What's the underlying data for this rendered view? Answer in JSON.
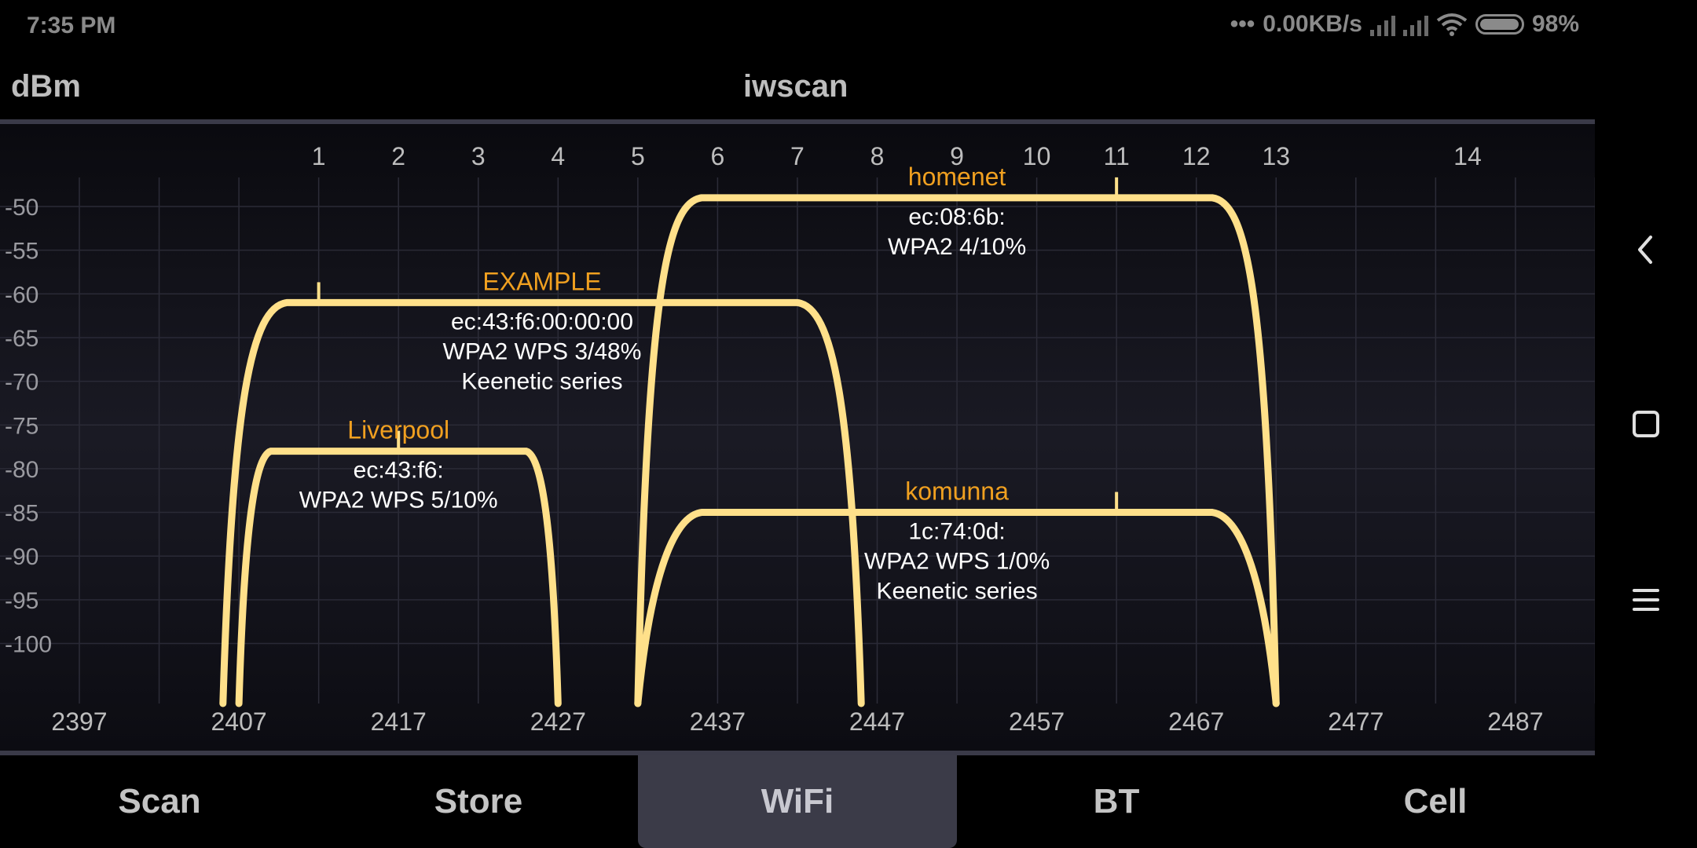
{
  "status_bar": {
    "time": "7:35 PM",
    "net_speed": "0.00KB/s",
    "battery": "98%",
    "battery_level": 0.98,
    "icons": [
      "dots-icon",
      "signal-icon",
      "signal-icon",
      "wifi-icon",
      "battery-icon"
    ]
  },
  "header": {
    "unit": "dBm",
    "title": "iwscan"
  },
  "chart_data": {
    "type": "area",
    "x_channel_ticks": [
      "1",
      "2",
      "3",
      "4",
      "5",
      "6",
      "7",
      "8",
      "9",
      "10",
      "11",
      "12",
      "13",
      "14"
    ],
    "channel_freqs": [
      2412,
      2417,
      2422,
      2427,
      2432,
      2437,
      2442,
      2447,
      2452,
      2457,
      2462,
      2467,
      2472,
      2484
    ],
    "x_freq_ticks": [
      "2397",
      "2407",
      "2417",
      "2427",
      "2437",
      "2447",
      "2457",
      "2467",
      "2477",
      "2487"
    ],
    "y_ticks": [
      "-50",
      "-55",
      "-60",
      "-65",
      "-70",
      "-75",
      "-80",
      "-85",
      "-90",
      "-95",
      "-100"
    ],
    "y_values": [
      -50,
      -55,
      -60,
      -65,
      -70,
      -75,
      -80,
      -85,
      -90,
      -95,
      -100
    ],
    "xlim": [
      2397,
      2493
    ],
    "ylim": [
      -106,
      -45
    ],
    "grid": true,
    "networks": [
      {
        "ssid": "EXAMPLE",
        "bssid": "ec:43:f6:00:00:00",
        "security": "WPA2 WPS 3/48%",
        "extra": "Keenetic series",
        "center_freq": 2426,
        "marker_freq": 2412,
        "width_mhz": 40,
        "level_dbm": -61
      },
      {
        "ssid": "Liverpool",
        "bssid": "ec:43:f6:",
        "security": "WPA2 WPS 5/10%",
        "extra": "",
        "center_freq": 2417,
        "marker_freq": 2417,
        "width_mhz": 20,
        "level_dbm": -78
      },
      {
        "ssid": "homenet",
        "bssid": "ec:08:6b:",
        "security": "WPA2  4/10%",
        "extra": "",
        "center_freq": 2452,
        "marker_freq": 2462,
        "width_mhz": 40,
        "level_dbm": -49
      },
      {
        "ssid": "komunna",
        "bssid": "1c:74:0d:",
        "security": "WPA2 WPS 1/0%",
        "extra": "Keenetic series",
        "center_freq": 2452,
        "marker_freq": 2462,
        "width_mhz": 40,
        "level_dbm": -85
      }
    ],
    "colors": {
      "curve": "#ffe08a",
      "ssid": "#f0a020",
      "info": "#ffffff",
      "axis": "#bdbdbd"
    }
  },
  "tabs": [
    {
      "label": "Scan",
      "active": false
    },
    {
      "label": "Store",
      "active": false
    },
    {
      "label": "WiFi",
      "active": true
    },
    {
      "label": "BT",
      "active": false
    },
    {
      "label": "Cell",
      "active": false
    }
  ],
  "nav": {
    "icons": [
      "back-icon",
      "home-icon",
      "menu-icon"
    ]
  }
}
